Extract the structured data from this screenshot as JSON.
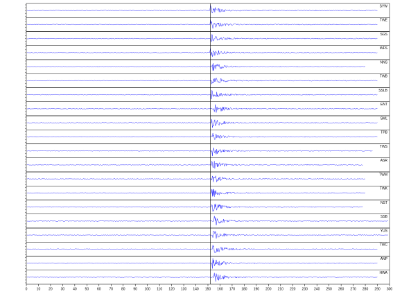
{
  "chart_data": {
    "type": "seismogram",
    "color": "#1a1aff",
    "marker": 152,
    "xlim": [
      0,
      300
    ],
    "xticks": [
      0,
      10,
      20,
      30,
      40,
      50,
      60,
      70,
      80,
      90,
      100,
      110,
      120,
      130,
      140,
      150,
      160,
      170,
      180,
      190,
      200,
      210,
      220,
      230,
      240,
      250,
      260,
      270,
      280,
      290,
      300
    ],
    "traces": [
      {
        "name": "SYW",
        "arrival": 151.5,
        "end": 290
      },
      {
        "name": "TWE",
        "arrival": 152,
        "end": 290
      },
      {
        "name": "SGS",
        "arrival": 152,
        "end": 290
      },
      {
        "name": "WFS",
        "arrival": 151.5,
        "end": 290
      },
      {
        "name": "NNS",
        "arrival": 153,
        "end": 280
      },
      {
        "name": "TWB",
        "arrival": 153,
        "end": 290
      },
      {
        "name": "SSLB",
        "arrival": 152.5,
        "end": 290
      },
      {
        "name": "ENT",
        "arrival": 155,
        "end": 290
      },
      {
        "name": "SML",
        "arrival": 153,
        "end": 290
      },
      {
        "name": "TPB",
        "arrival": 153,
        "end": 290
      },
      {
        "name": "TWS",
        "arrival": 153.5,
        "end": 286
      },
      {
        "name": "ASR",
        "arrival": 153,
        "end": 278
      },
      {
        "name": "TWM",
        "arrival": 153,
        "end": 280
      },
      {
        "name": "TWK",
        "arrival": 153,
        "end": 280
      },
      {
        "name": "NST",
        "arrival": 153,
        "end": 278
      },
      {
        "name": "SSB",
        "arrival": 155,
        "end": 299
      },
      {
        "name": "YUS",
        "arrival": 154,
        "end": 299
      },
      {
        "name": "TWC",
        "arrival": 154,
        "end": 290
      },
      {
        "name": "ANP",
        "arrival": 153.5,
        "end": 290
      },
      {
        "name": "HWA",
        "arrival": 155,
        "end": 290
      }
    ]
  }
}
